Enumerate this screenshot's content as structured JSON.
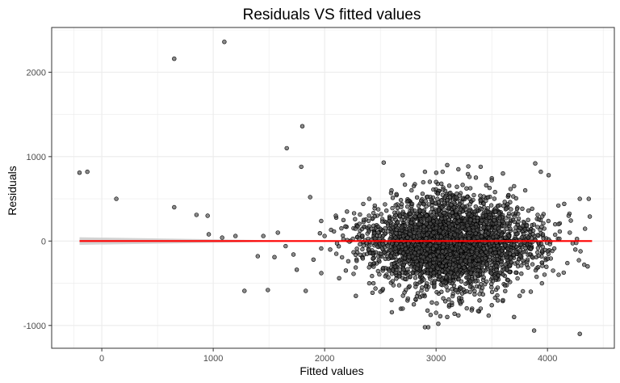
{
  "chart_data": {
    "type": "scatter",
    "title": "Residuals VS fitted values",
    "xlabel": "Fitted values",
    "ylabel": "Residuals",
    "xlim": [
      -450,
      4600
    ],
    "ylim": [
      -1270,
      2530
    ],
    "x_ticks": [
      0,
      1000,
      2000,
      3000,
      4000
    ],
    "x_tick_labels": [
      "0",
      "1000",
      "2000",
      "3000",
      "4000"
    ],
    "y_ticks": [
      -1000,
      0,
      1000,
      2000
    ],
    "y_tick_labels": [
      "-1000",
      "0",
      "1000",
      "2000"
    ],
    "grid": true,
    "legend": "none",
    "colors": {
      "points_fill": "#4d4d4d",
      "points_stroke": "#000000",
      "fit_line": "#ff0000",
      "confidence_band": "#c8c8c8",
      "grid": "#ebebeb",
      "panel_border": "#333333"
    },
    "series": [
      {
        "points": [
          [
            -200,
            810
          ],
          [
            -130,
            820
          ],
          [
            130,
            500
          ],
          [
            650,
            2160
          ],
          [
            1100,
            2360
          ],
          [
            650,
            400
          ],
          [
            1660,
            1100
          ],
          [
            1800,
            1360
          ],
          [
            1790,
            880
          ],
          [
            1870,
            520
          ],
          [
            850,
            310
          ],
          [
            950,
            300
          ],
          [
            1280,
            -590
          ],
          [
            1490,
            -580
          ],
          [
            1830,
            -590
          ],
          [
            2530,
            930
          ],
          [
            3890,
            920
          ],
          [
            3940,
            820
          ],
          [
            4010,
            780
          ],
          [
            4150,
            440
          ],
          [
            4190,
            300
          ],
          [
            4290,
            500
          ],
          [
            4370,
            500
          ],
          [
            4380,
            290
          ],
          [
            4360,
            -300
          ],
          [
            4330,
            -280
          ],
          [
            3880,
            -1060
          ],
          [
            4290,
            -1100
          ],
          [
            2900,
            -1020
          ],
          [
            2930,
            -1020
          ],
          [
            3020,
            -980
          ],
          [
            3320,
            -820
          ],
          [
            3700,
            -900
          ],
          [
            2280,
            -650
          ],
          [
            2130,
            -440
          ],
          [
            1970,
            -380
          ],
          [
            1750,
            -340
          ],
          [
            1650,
            -60
          ],
          [
            1450,
            60
          ],
          [
            1580,
            100
          ],
          [
            1200,
            60
          ],
          [
            1080,
            40
          ],
          [
            960,
            80
          ],
          [
            1400,
            -180
          ],
          [
            1550,
            -190
          ],
          [
            1720,
            -160
          ],
          [
            1900,
            -220
          ],
          [
            2000,
            60
          ],
          [
            2050,
            -100
          ],
          [
            2150,
            150
          ],
          [
            2100,
            300
          ],
          [
            2200,
            350
          ],
          [
            2350,
            250
          ],
          [
            2400,
            500
          ],
          [
            2450,
            420
          ],
          [
            2600,
            600
          ],
          [
            2700,
            780
          ],
          [
            2800,
            650
          ],
          [
            2900,
            820
          ],
          [
            3000,
            700
          ],
          [
            3100,
            900
          ],
          [
            3200,
            850
          ],
          [
            3300,
            760
          ],
          [
            3400,
            880
          ],
          [
            3500,
            720
          ],
          [
            3600,
            800
          ],
          [
            3700,
            650
          ],
          [
            3800,
            600
          ],
          [
            2400,
            -500
          ],
          [
            2500,
            -600
          ],
          [
            2600,
            -700
          ],
          [
            2700,
            -800
          ],
          [
            2800,
            -750
          ],
          [
            3000,
            -850
          ],
          [
            3100,
            -900
          ],
          [
            3200,
            -880
          ],
          [
            3400,
            -800
          ],
          [
            3500,
            -760
          ],
          [
            3600,
            -700
          ],
          [
            3750,
            -650
          ],
          [
            3850,
            -600
          ],
          [
            3950,
            -500
          ],
          [
            4050,
            -350
          ],
          [
            4100,
            200
          ],
          [
            4200,
            100
          ],
          [
            4250,
            -100
          ],
          [
            4100,
            -400
          ]
        ]
      }
    ],
    "cloud": {
      "center": [
        3130,
        -30
      ],
      "std": [
        370,
        300
      ],
      "count": 3200,
      "x_range": [
        1900,
        4400
      ],
      "y_range": [
        -900,
        900
      ]
    },
    "fit_line": {
      "x": [
        -200,
        4400
      ],
      "y": [
        0,
        0
      ]
    },
    "confidence_band": {
      "x": [
        -200,
        1600
      ],
      "half_width": [
        45,
        8
      ]
    }
  }
}
